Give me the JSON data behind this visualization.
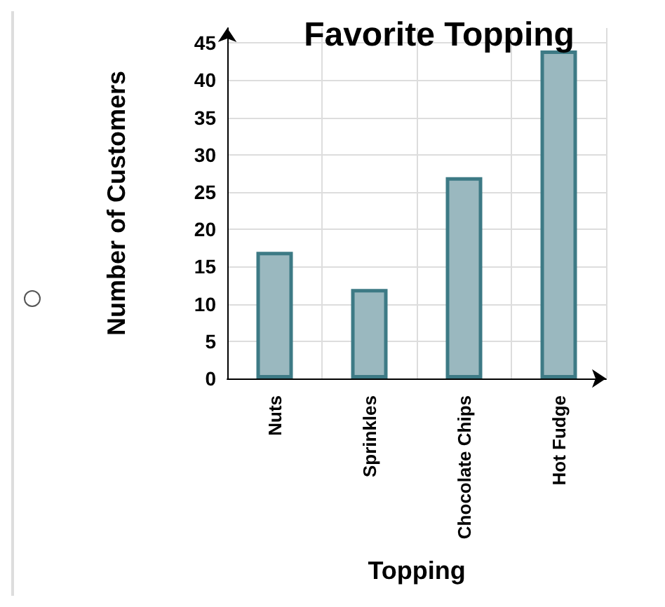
{
  "chart_data": {
    "type": "bar",
    "title": "Favorite Topping",
    "xlabel": "Topping",
    "ylabel": "Number of Customers",
    "categories": [
      "Nuts",
      "Sprinkles",
      "Chocolate Chips",
      "Hot Fudge"
    ],
    "values": [
      17,
      12,
      27,
      44
    ],
    "color": "#9ab8bf",
    "ylim": [
      0,
      47
    ],
    "yticks": [
      0,
      5,
      10,
      15,
      20,
      25,
      30,
      35,
      40,
      45
    ],
    "grid": true
  }
}
